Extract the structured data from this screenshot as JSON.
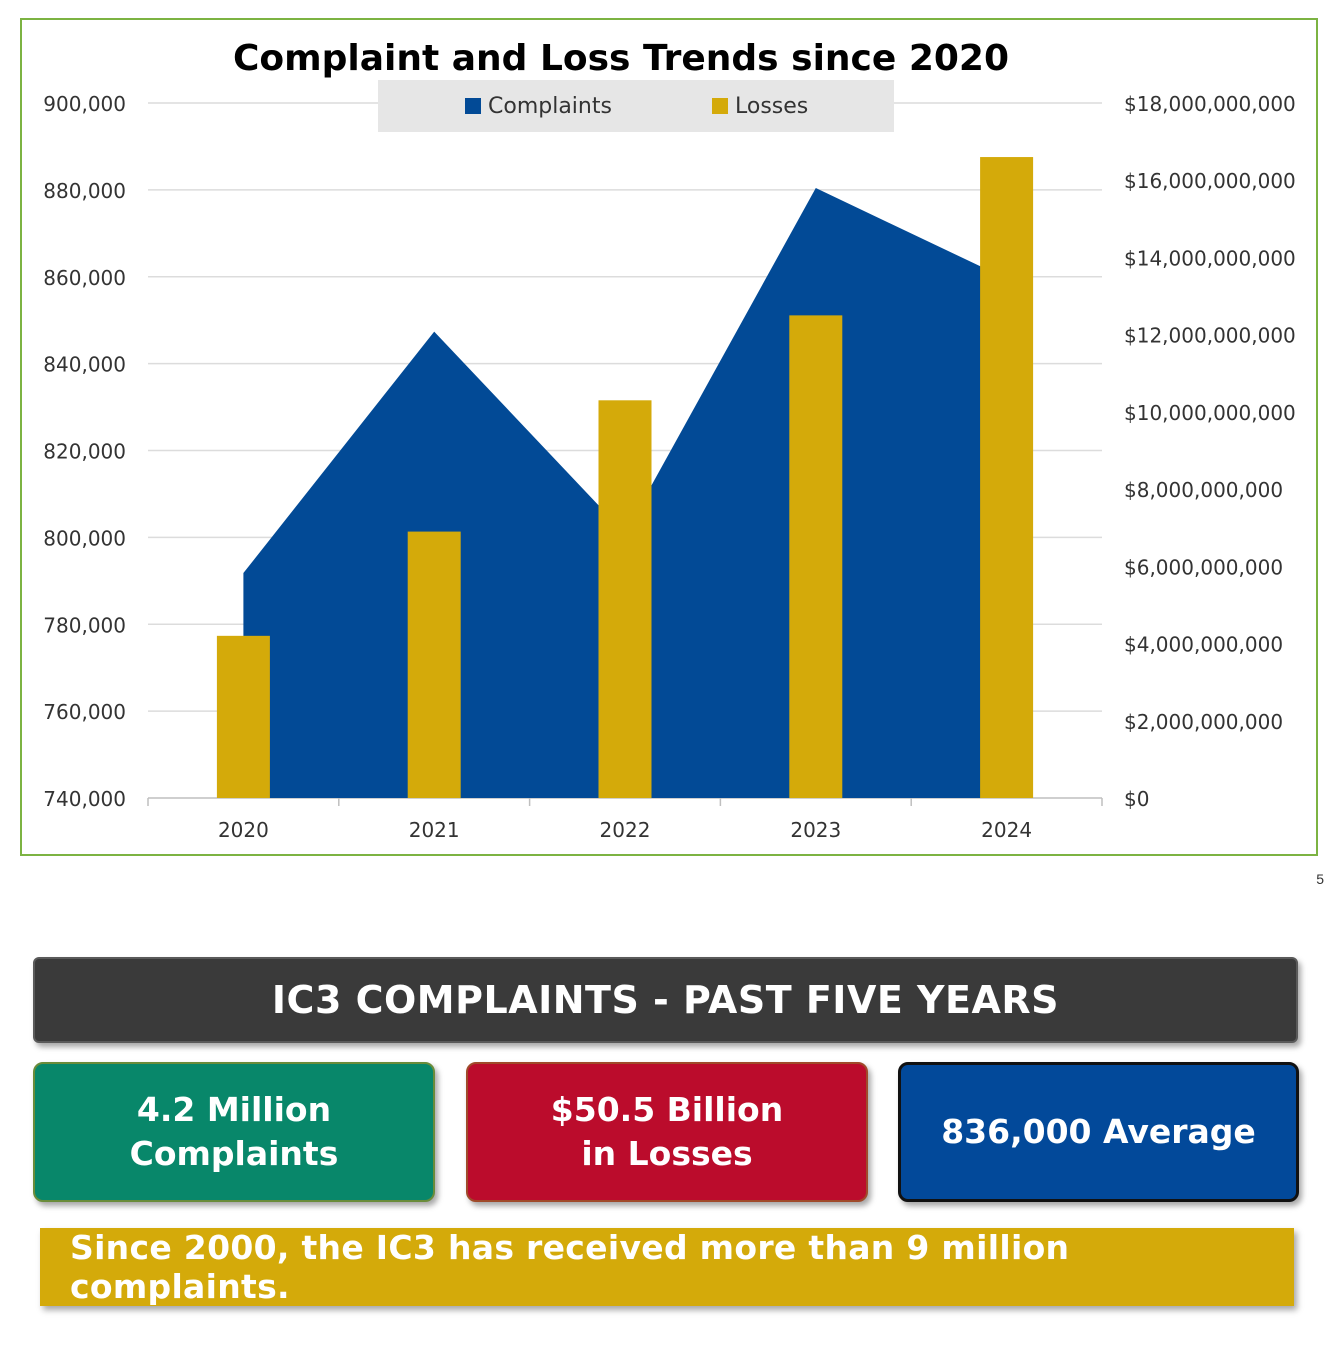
{
  "chart_data": {
    "type": "area+bar",
    "title": "Complaint and Loss Trends since 2020",
    "categories": [
      "2020",
      "2021",
      "2022",
      "2023",
      "2024"
    ],
    "series": [
      {
        "name": "Complaints",
        "type": "area",
        "axis": "left",
        "color": "#024a96",
        "values": [
          791790,
          847376,
          800944,
          880418,
          859532
        ]
      },
      {
        "name": "Losses",
        "type": "bar",
        "axis": "right",
        "color": "#d4aa0a",
        "values": [
          4200000000,
          6900000000,
          10300000000,
          12500000000,
          16600000000
        ]
      }
    ],
    "y_left": {
      "ylim": [
        740000,
        900000
      ],
      "ticks": [
        "740,000",
        "760,000",
        "780,000",
        "800,000",
        "820,000",
        "840,000",
        "860,000",
        "880,000",
        "900,000"
      ]
    },
    "y_right": {
      "ylim": [
        0,
        18000000000
      ],
      "ticks": [
        "$0",
        "$2,000,000,000",
        "$4,000,000,000",
        "$6,000,000,000",
        "$8,000,000,000",
        "$10,000,000,000",
        "$12,000,000,000",
        "$14,000,000,000",
        "$16,000,000,000",
        "$18,000,000,000"
      ]
    },
    "legend_position": "top-center",
    "grid": true
  },
  "page_number": "5",
  "banner": {
    "title": "IC3 COMPLAINTS - PAST FIVE YEARS"
  },
  "stats": {
    "complaints_line1": "4.2 Million",
    "complaints_line2": "Complaints",
    "losses_line1": "$50.5 Billion",
    "losses_line2": "in Losses",
    "average": "836,000 Average"
  },
  "footer": {
    "text": "Since 2000, the IC3 has received more than 9 million complaints."
  },
  "colors": {
    "complaints_box": "#08876a",
    "losses_box": "#bb0c2c",
    "average_box": "#02499a",
    "banner": "#3a3a3a",
    "footer": "#d4aa0a"
  }
}
